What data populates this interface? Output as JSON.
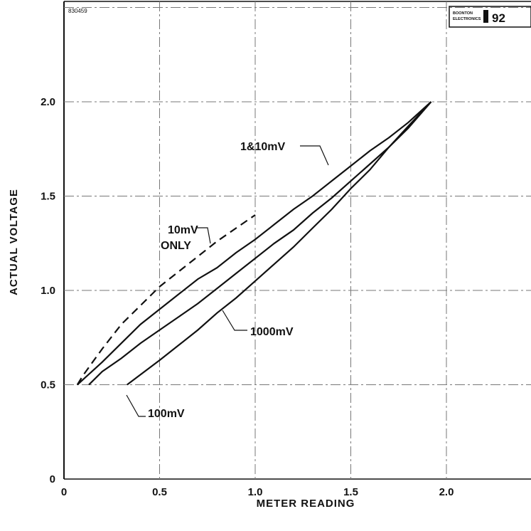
{
  "doc_number": "830459",
  "brand": {
    "name_line1": "BOONTON",
    "name_line2": "ELECTRONICS",
    "number": "92"
  },
  "chart_data": {
    "type": "line",
    "title": "",
    "xlabel": "METER READING",
    "ylabel": "ACTUAL VOLTAGE",
    "xlim": [
      0,
      2.5
    ],
    "ylim": [
      0,
      2.5
    ],
    "x_ticks": [
      "0",
      "0.5",
      "1.0",
      "1.5",
      "2.0"
    ],
    "y_ticks": [
      "0",
      "0.5",
      "1.0",
      "1.5",
      "2.0"
    ],
    "grid": true,
    "series": [
      {
        "name": "1 & 10mV",
        "style": "solid",
        "x": [
          0.07,
          0.2,
          0.3,
          0.4,
          0.5,
          0.6,
          0.7,
          0.8,
          0.9,
          1.0,
          1.1,
          1.2,
          1.3,
          1.4,
          1.5,
          1.6,
          1.7,
          1.8,
          1.92
        ],
        "y": [
          0.5,
          0.62,
          0.72,
          0.82,
          0.9,
          0.98,
          1.06,
          1.12,
          1.2,
          1.27,
          1.35,
          1.43,
          1.5,
          1.58,
          1.66,
          1.74,
          1.81,
          1.89,
          2.0
        ]
      },
      {
        "name": "10mV ONLY",
        "style": "dashed",
        "x": [
          0.07,
          0.1,
          0.15,
          0.2,
          0.3,
          0.4,
          0.5,
          0.6,
          0.7,
          0.8,
          0.9,
          1.0
        ],
        "y": [
          0.5,
          0.55,
          0.62,
          0.69,
          0.82,
          0.92,
          1.02,
          1.1,
          1.18,
          1.26,
          1.33,
          1.4
        ]
      },
      {
        "name": "100mV",
        "style": "solid",
        "x": [
          0.13,
          0.2,
          0.3,
          0.4,
          0.5,
          0.6,
          0.7,
          0.8,
          0.9,
          1.0,
          1.1,
          1.2,
          1.3,
          1.4,
          1.5,
          1.6,
          1.7,
          1.8,
          1.92
        ],
        "y": [
          0.5,
          0.57,
          0.64,
          0.72,
          0.79,
          0.86,
          0.93,
          1.01,
          1.09,
          1.17,
          1.25,
          1.32,
          1.41,
          1.49,
          1.58,
          1.67,
          1.76,
          1.86,
          2.0
        ]
      },
      {
        "name": "1000mV",
        "style": "solid",
        "x": [
          0.33,
          0.5,
          0.6,
          0.7,
          0.8,
          0.9,
          1.0,
          1.1,
          1.2,
          1.3,
          1.4,
          1.5,
          1.6,
          1.7,
          1.8,
          1.92
        ],
        "y": [
          0.5,
          0.63,
          0.71,
          0.79,
          0.88,
          0.96,
          1.05,
          1.14,
          1.23,
          1.33,
          1.43,
          1.54,
          1.64,
          1.76,
          1.87,
          2.0
        ]
      }
    ],
    "annotations": [
      {
        "text": "1&10mV",
        "series": "1 & 10mV"
      },
      {
        "text": "10mV",
        "text2": "ONLY",
        "series": "10mV ONLY"
      },
      {
        "text": "100mV",
        "series": "100mV"
      },
      {
        "text": "1000mV",
        "series": "1000mV"
      }
    ]
  }
}
